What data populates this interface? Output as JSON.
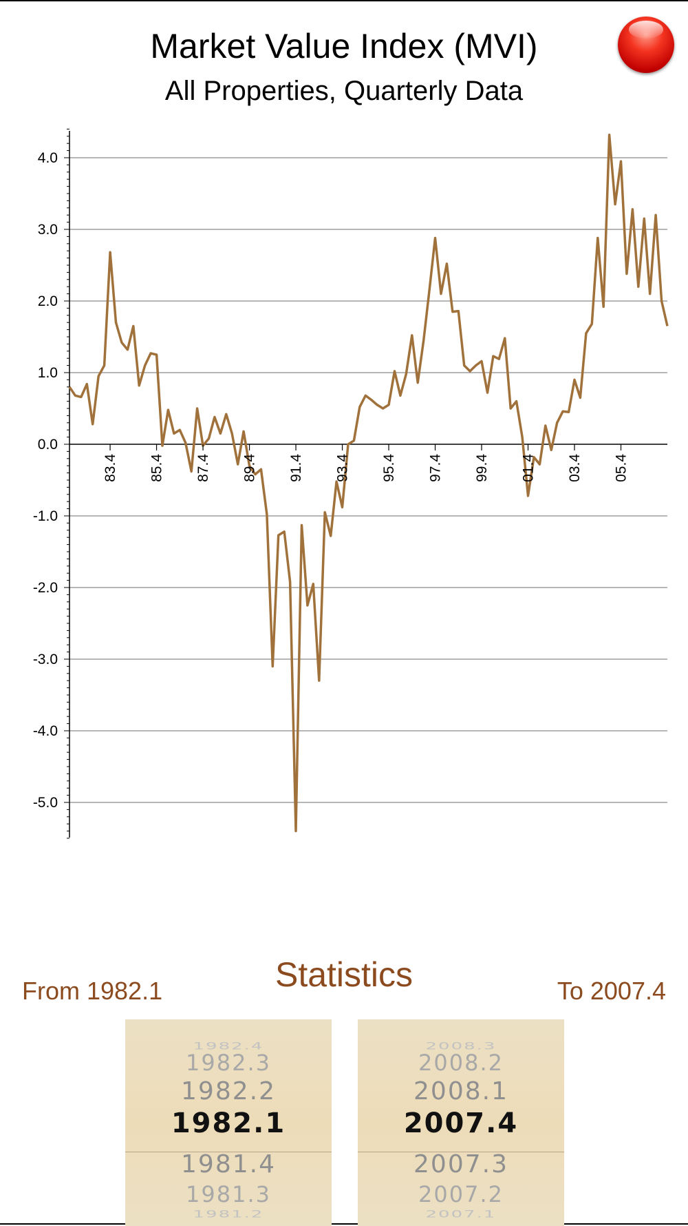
{
  "header": {
    "title": "Market Value Index (MVI)",
    "subtitle": "All Properties, Quarterly Data"
  },
  "controls": {
    "close_icon": "red-orb-close-icon"
  },
  "colors": {
    "line": "#a0713a",
    "accent": "#8c4a1f",
    "grid": "#8a8a8a"
  },
  "chart_data": {
    "type": "line",
    "title": "Market Value Index (MVI)",
    "subtitle": "All Properties, Quarterly Data",
    "xlabel": "",
    "ylabel": "",
    "ylim": [
      -5.5,
      4.4
    ],
    "yticks": [
      4.0,
      3.0,
      2.0,
      1.0,
      0.0,
      -1.0,
      -2.0,
      -3.0,
      -4.0,
      -5.0
    ],
    "ytick_labels": [
      "4.0",
      "3.0",
      "2.0",
      "1.0",
      "0.0",
      "-1.0",
      "-2.0",
      "-3.0",
      "-4.0",
      "-5.0"
    ],
    "xtick_labels": [
      "83.4",
      "85.4",
      "87.4",
      "89.4",
      "91.4",
      "93.4",
      "95.4",
      "97.4",
      "99.4",
      "01.4",
      "03.4",
      "05.4"
    ],
    "xtick_quarter_index": [
      7,
      15,
      23,
      31,
      39,
      47,
      55,
      63,
      71,
      79,
      87,
      95
    ],
    "x_start": "1982.1",
    "x_end": "2007.4",
    "grid": true,
    "series": [
      {
        "values": [
          0.8,
          0.68,
          0.66,
          0.84,
          0.28,
          0.95,
          1.1,
          2.68,
          1.7,
          1.42,
          1.32,
          1.65,
          0.82,
          1.1,
          1.27,
          1.25,
          -0.02,
          0.48,
          0.15,
          0.2,
          0.02,
          -0.38,
          0.5,
          -0.02,
          0.08,
          0.38,
          0.15,
          0.42,
          0.15,
          -0.28,
          0.18,
          -0.3,
          -0.42,
          -0.35,
          -0.98,
          -3.1,
          -1.27,
          -1.22,
          -1.92,
          -5.4,
          -1.13,
          -2.25,
          -1.95,
          -3.3,
          -0.95,
          -1.28,
          -0.52,
          -0.88,
          0.0,
          0.05,
          0.52,
          0.68,
          0.62,
          0.55,
          0.5,
          0.55,
          1.02,
          0.68,
          0.98,
          1.52,
          0.86,
          1.45,
          2.15,
          2.88,
          2.1,
          2.52,
          1.85,
          1.86,
          1.1,
          1.02,
          1.1,
          1.16,
          0.72,
          1.23,
          1.19,
          1.48,
          0.5,
          0.6,
          0.1,
          -0.72,
          -0.18,
          -0.28,
          0.26,
          -0.08,
          0.3,
          0.46,
          0.45,
          0.9,
          0.65,
          1.55,
          1.68,
          2.88,
          1.92,
          4.32,
          3.35,
          3.95,
          2.38,
          3.28,
          2.2,
          3.15,
          2.1,
          3.2,
          2.0,
          1.65
        ]
      }
    ]
  },
  "statistics": {
    "title": "Statistics",
    "from_label": "From 1982.1",
    "to_label": "To 2007.4"
  },
  "pickers": {
    "from": {
      "above": [
        "1982.4",
        "1982.3",
        "1982.2"
      ],
      "selected": "1982.1",
      "below": [
        "1981.4",
        "1981.3",
        "1981.2"
      ]
    },
    "to": {
      "above": [
        "2008.3",
        "2008.2",
        "2008.1"
      ],
      "selected": "2007.4",
      "below": [
        "2007.3",
        "2007.2",
        "2007.1"
      ]
    }
  }
}
